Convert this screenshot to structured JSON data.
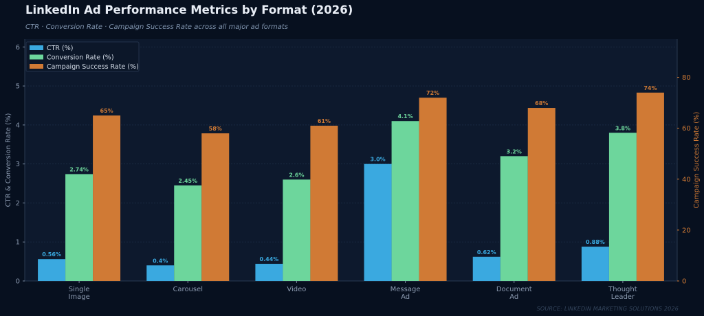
{
  "title": "LinkedIn Ad Performance Metrics by Format (2026)",
  "subtitle": "CTR · Conversion Rate · Campaign Success Rate across all major ad formats",
  "source": "SOURCE: LINKEDIN MARKETING SOLUTIONS 2026",
  "colors": {
    "ctr": "#3aa9e0",
    "conversion": "#6dd69c",
    "success": "#d07a35",
    "background": "#07101f",
    "plot_background": "#0d192d"
  },
  "chart_data": {
    "type": "bar",
    "categories": [
      [
        "Single",
        "Image"
      ],
      [
        "Carousel"
      ],
      [
        "Video"
      ],
      [
        "Message",
        "Ad"
      ],
      [
        "Document",
        "Ad"
      ],
      [
        "Thought",
        "Leader"
      ]
    ],
    "series": [
      {
        "name": "CTR (%)",
        "axis": "left",
        "values": [
          0.56,
          0.4,
          0.44,
          3.0,
          0.62,
          0.88
        ],
        "labels": [
          "0.56%",
          "0.4%",
          "0.44%",
          "3.0%",
          "0.62%",
          "0.88%"
        ]
      },
      {
        "name": "Conversion Rate (%)",
        "axis": "left",
        "values": [
          2.74,
          2.45,
          2.6,
          4.1,
          3.2,
          3.8
        ],
        "labels": [
          "2.74%",
          "2.45%",
          "2.6%",
          "4.1%",
          "3.2%",
          "3.8%"
        ]
      },
      {
        "name": "Campaign Success Rate (%)",
        "axis": "right",
        "values": [
          65,
          58,
          61,
          72,
          68,
          74
        ],
        "labels": [
          "65%",
          "58%",
          "61%",
          "72%",
          "68%",
          "74%"
        ]
      }
    ],
    "ylabel": "CTR & Conversion Rate (%)",
    "y2label": "Campaign Success Rate (%)",
    "ylim": [
      0,
      6.2
    ],
    "y2lim": [
      0,
      95
    ],
    "yticks": [
      0,
      1,
      2,
      3,
      4,
      5,
      6
    ],
    "y2ticks": [
      0,
      20,
      40,
      60,
      80
    ],
    "grid": true,
    "legend_position": "top-left"
  }
}
